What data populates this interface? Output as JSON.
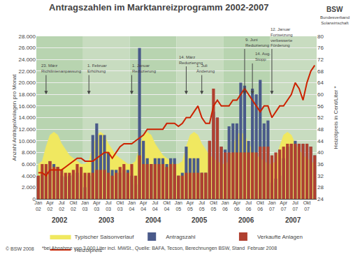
{
  "chart_data": {
    "type": "bar",
    "title": "Antragszahlen im Marktanreizprogramm 2002-2007",
    "y_label": "Anzahl Anträge/Anlagen pro Monat",
    "y2_label": "Heizölpreis in Cent/Liter *",
    "categories": [
      "Jan\n02",
      null,
      null,
      "Apr\n02",
      null,
      null,
      "Jul\n02",
      null,
      null,
      "Okt\n02",
      null,
      null,
      "Jan\n03",
      null,
      null,
      "Apr\n03",
      null,
      null,
      "Jul\n03",
      null,
      null,
      "Okt\n03",
      null,
      null,
      "Jan\n04",
      null,
      null,
      "Apr\n04",
      null,
      null,
      "Jul\n04",
      null,
      null,
      "Okt\n04",
      null,
      null,
      "Jan\n05",
      null,
      null,
      "Apr\n05",
      null,
      null,
      "Jul\n05",
      null,
      null,
      "Okt\n05",
      null,
      null,
      "Jan\n06",
      null,
      null,
      "Apr\n06",
      null,
      null,
      "Jul\n06",
      null,
      null,
      "Okt\n06",
      null,
      null,
      "Jan\n07",
      null,
      null,
      "Apr\n07",
      null,
      null,
      "Jul\n07",
      null,
      null,
      "Okt\n07",
      null,
      null
    ],
    "series": [
      {
        "name": "Typischer Saisonverlauf",
        "type": "area",
        "color": "#f0e860",
        "values": [
          6000,
          6500,
          9000,
          11000,
          11500,
          11000,
          9500,
          8500,
          7500,
          7000,
          6500,
          6000,
          6000,
          6500,
          9000,
          11000,
          11500,
          11000,
          9500,
          8500,
          7500,
          7000,
          6500,
          6000,
          6000,
          6500,
          9000,
          11000,
          11500,
          11000,
          9500,
          8500,
          7500,
          7000,
          6500,
          6000,
          6000,
          6500,
          9000,
          11000,
          11500,
          11000,
          9500,
          8500,
          7500,
          7000,
          6500,
          6000,
          6000,
          6500,
          9000,
          11000,
          11500,
          11000,
          9500,
          8500,
          7500,
          7000,
          6500,
          6000,
          6000,
          6500,
          9000,
          11000,
          11500,
          11000,
          9500,
          8500,
          7500,
          7000,
          6500,
          6000
        ]
      },
      {
        "name": "Antragszahl",
        "type": "bar",
        "color": "#4a5a8a",
        "values": [
          4000,
          4200,
          4500,
          6500,
          6000,
          5500,
          4000,
          3800,
          4000,
          4200,
          4500,
          4000,
          2000,
          4000,
          11000,
          13000,
          11000,
          11000,
          8000,
          5000,
          5000,
          4500,
          5000,
          5000,
          4000,
          2500,
          26000,
          10000,
          7000,
          6000,
          7000,
          7000,
          7000,
          6000,
          7000,
          7000,
          4000,
          4500,
          9000,
          7000,
          7000,
          7000,
          4500,
          4500,
          10000,
          15000,
          14000,
          9000,
          8500,
          12500,
          13000,
          13000,
          20000,
          19500,
          10000,
          19000,
          18000,
          20500,
          13000,
          13500,
          2800,
          3500,
          4000,
          7000,
          9000,
          9500,
          10000,
          9500,
          9500,
          9500,
          9000,
          7500
        ]
      },
      {
        "name": "Verkaufte Anlagen",
        "type": "bar",
        "color": "#b04030",
        "values": [
          4000,
          6000,
          6000,
          6500,
          5500,
          5500,
          5000,
          4500,
          4500,
          5000,
          6000,
          5500,
          4500,
          4500,
          4500,
          5000,
          5000,
          5000,
          4500,
          4000,
          4500,
          5500,
          6000,
          4500,
          6000,
          4000,
          7500,
          6000,
          6000,
          6000,
          6000,
          6000,
          6000,
          5500,
          6000,
          6000,
          4000,
          4000,
          4500,
          4500,
          4500,
          4500,
          4500,
          4500,
          10000,
          19000,
          14000,
          9000,
          8000,
          8000,
          8000,
          8000,
          8000,
          8000,
          8000,
          8000,
          8000,
          9000,
          9000,
          9000,
          7500,
          8000,
          8500,
          9000,
          9500,
          9500,
          9500,
          9500,
          9500,
          9500,
          9000,
          7500
        ]
      },
      {
        "name": "Heizölpreis",
        "type": "line",
        "color": "#cc2200",
        "axis": "y2",
        "values": [
          33,
          33,
          32,
          34,
          34,
          34,
          34,
          35,
          36,
          37,
          38,
          38,
          37,
          37,
          37,
          38,
          39,
          40,
          40,
          38,
          40,
          42,
          43,
          43,
          43,
          44,
          45,
          46,
          48,
          48,
          48,
          48,
          48,
          50,
          50,
          50,
          49,
          50,
          52,
          52,
          54,
          56,
          52,
          50,
          50,
          56,
          58,
          56,
          56,
          56,
          58,
          58,
          60,
          62,
          60,
          58,
          56,
          54,
          56,
          56,
          52,
          54,
          56,
          56,
          58,
          60,
          64,
          62,
          58,
          64,
          68,
          70
        ]
      }
    ],
    "stacked": false,
    "ylim": [
      0,
      28000
    ],
    "yticks": [
      0,
      {
        "value": 2000,
        "label": "2.000"
      },
      {
        "value": 4000,
        "label": "4.000"
      },
      {
        "value": 6000,
        "label": "6.000"
      },
      {
        "value": 8000,
        "label": "8.000"
      },
      {
        "value": 10000,
        "label": "10.000"
      },
      {
        "value": 12000,
        "label": "12.000"
      },
      {
        "value": 14000,
        "label": "14.000"
      },
      {
        "value": 16000,
        "label": "16.000"
      },
      {
        "value": 18000,
        "label": "18.000"
      },
      {
        "value": 20000,
        "label": "20.000"
      },
      {
        "value": 22000,
        "label": "22.000"
      },
      {
        "value": 24000,
        "label": "24.000"
      },
      {
        "value": 26000,
        "label": "26.000"
      },
      {
        "value": 28000,
        "label": "28.000"
      }
    ],
    "y2lim": [
      24,
      80
    ],
    "y2ticks": [
      24,
      28,
      32,
      36,
      40,
      44,
      48,
      52,
      56,
      60,
      64,
      68,
      72,
      76,
      80
    ],
    "grid": true,
    "legend": "bottom",
    "year_bands": [
      {
        "label": "2002",
        "start": 0,
        "end": 12,
        "color": "#b8d4b0"
      },
      {
        "label": "2003",
        "start": 12,
        "end": 24,
        "color": "#c8dcc0"
      },
      {
        "label": "2004",
        "start": 24,
        "end": 36,
        "color": "#b8d4b0"
      },
      {
        "label": "2005",
        "start": 36,
        "end": 48,
        "color": "#c8dcc0"
      },
      {
        "label": "2006",
        "start": 48,
        "end": 60,
        "color": "#b8d4b0"
      },
      {
        "label": "2007",
        "start": 60,
        "end": 72,
        "color": "#c8dcc0"
      }
    ],
    "annotations": [
      {
        "text": "23. März\nRichtlinienanpassung",
        "x": 0.5,
        "y": 21500,
        "arrow_x": 2,
        "arrow_y": 18000
      },
      {
        "text": "1. Februar\nErhöhung",
        "x": 12.5,
        "y": 21500,
        "arrow_x": 13,
        "arrow_y": 18000
      },
      {
        "text": "1. Januar\nReduzierung",
        "x": 24.0,
        "y": 21500,
        "arrow_x": 24,
        "arrow_y": 18000
      },
      {
        "text": "1. Juli\nÄnderung",
        "x": 40.5,
        "y": 21500,
        "arrow_x": 42,
        "arrow_y": 18000
      },
      {
        "text": "14. März\nReduzierung",
        "x": 36.0,
        "y": 23000,
        "arrow_x": 38,
        "arrow_y": 18000
      },
      {
        "text": "9. Juni\nReduzierung",
        "x": 53.0,
        "y": 26000,
        "arrow_x": 53,
        "arrow_y": 18000
      },
      {
        "text": "14. Aug.\nStopp",
        "x": 55.5,
        "y": 23500,
        "arrow_x": 55,
        "arrow_y": 18000
      },
      {
        "text": "12. Januar\nFortsetzung\nverbesserte\nFörderung",
        "x": 59.5,
        "y": 26000,
        "arrow_x": 60,
        "arrow_y": 18000
      }
    ],
    "logo": {
      "text": "BSW",
      "subtext": "Bundesverband\nSolarwirtschaft"
    },
    "copyright": "© BSW 2008",
    "footnote": "*bei Abnahme von 3.000 Liter incl. MWSt., Quelle: BAFA, Tecson, Berechnungen BSW, Stand  Februar 2008"
  }
}
